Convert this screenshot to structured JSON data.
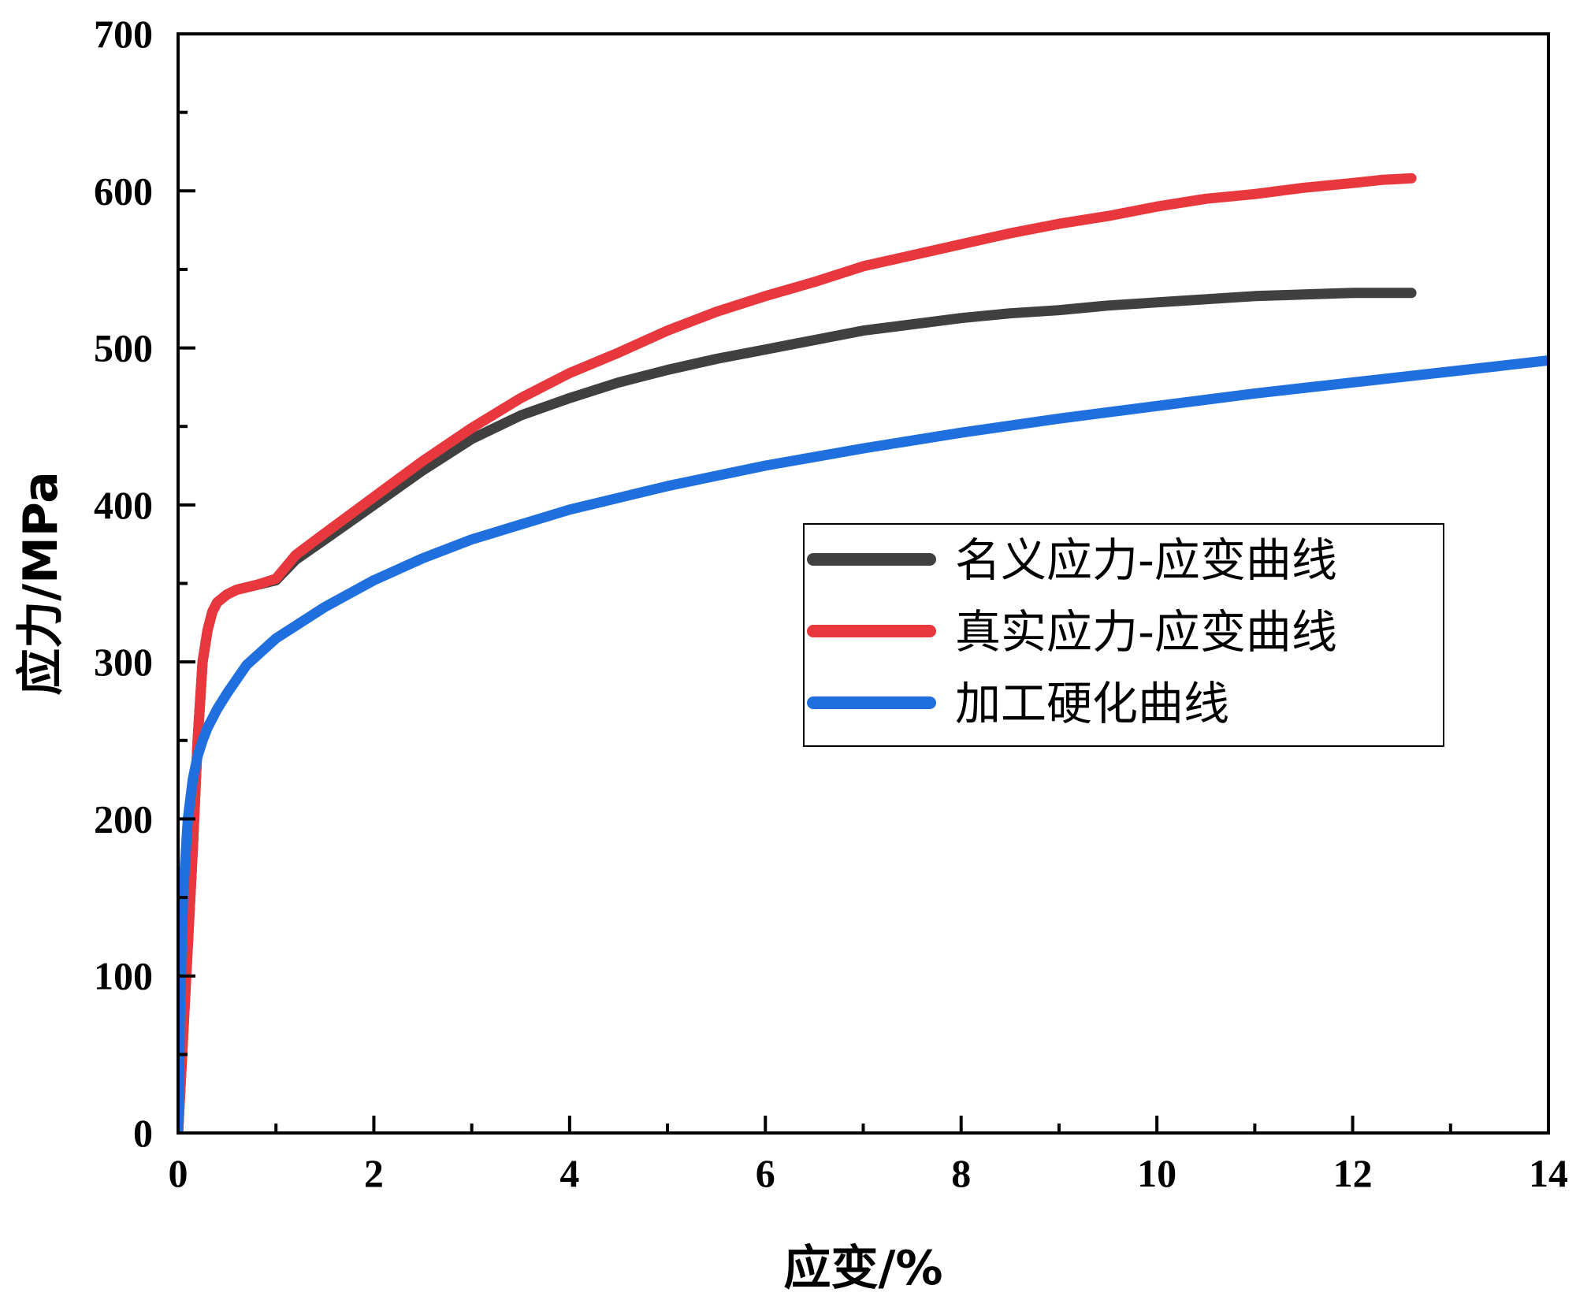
{
  "chart_data": {
    "type": "line",
    "xlabel": "应变/%",
    "ylabel": "应力/MPa",
    "xlim": [
      0,
      14
    ],
    "ylim": [
      0,
      700
    ],
    "x_ticks": [
      0,
      2,
      4,
      6,
      8,
      10,
      12,
      14
    ],
    "y_ticks": [
      0,
      100,
      200,
      300,
      400,
      500,
      600,
      700
    ],
    "grid": false,
    "legend_position": "center-right",
    "series": [
      {
        "name": "名义应力-应变曲线",
        "color": "#404040",
        "x": [
          0,
          0.05,
          0.1,
          0.15,
          0.2,
          0.25,
          0.3,
          0.35,
          0.4,
          0.5,
          0.6,
          0.8,
          1.0,
          1.2,
          1.5,
          2.0,
          2.5,
          3.0,
          3.5,
          4.0,
          4.5,
          5.0,
          5.5,
          6.0,
          6.5,
          7.0,
          7.5,
          8.0,
          8.5,
          9.0,
          9.5,
          10.0,
          10.5,
          11.0,
          11.5,
          12.0,
          12.3,
          12.6
        ],
        "y": [
          0,
          60,
          120,
          180,
          250,
          300,
          320,
          332,
          338,
          343,
          346,
          349,
          352,
          365,
          378,
          400,
          422,
          442,
          457,
          468,
          478,
          486,
          493,
          499,
          505,
          511,
          515,
          519,
          522,
          524,
          527,
          529,
          531,
          533,
          534,
          535,
          535,
          535
        ]
      },
      {
        "name": "真实应力-应变曲线",
        "color": "#e8383d",
        "x": [
          0,
          0.05,
          0.1,
          0.15,
          0.2,
          0.25,
          0.3,
          0.35,
          0.4,
          0.5,
          0.6,
          0.8,
          1.0,
          1.2,
          1.5,
          2.0,
          2.5,
          3.0,
          3.5,
          4.0,
          4.5,
          5.0,
          5.5,
          6.0,
          6.5,
          7.0,
          7.5,
          8.0,
          8.5,
          9.0,
          9.5,
          10.0,
          10.5,
          11.0,
          11.5,
          12.0,
          12.3,
          12.6
        ],
        "y": [
          0,
          60,
          120,
          180,
          250,
          300,
          320,
          332,
          338,
          343,
          346,
          349,
          353,
          368,
          382,
          405,
          428,
          449,
          468,
          484,
          497,
          511,
          523,
          533,
          542,
          552,
          559,
          566,
          573,
          579,
          584,
          590,
          595,
          598,
          602,
          605,
          607,
          608
        ]
      },
      {
        "name": "加工硬化曲线",
        "color": "#1f6fde",
        "x": [
          0,
          0.02,
          0.05,
          0.1,
          0.15,
          0.2,
          0.25,
          0.3,
          0.4,
          0.5,
          0.7,
          1.0,
          1.5,
          2.0,
          2.5,
          3.0,
          4.0,
          5.0,
          6.0,
          7.0,
          8.0,
          9.0,
          10.0,
          11.0,
          12.0,
          13.0,
          14.0
        ],
        "y": [
          0,
          80,
          150,
          200,
          225,
          240,
          250,
          258,
          270,
          280,
          298,
          315,
          335,
          352,
          366,
          378,
          397,
          412,
          425,
          436,
          446,
          455,
          463,
          471,
          478,
          485,
          492
        ]
      }
    ]
  }
}
